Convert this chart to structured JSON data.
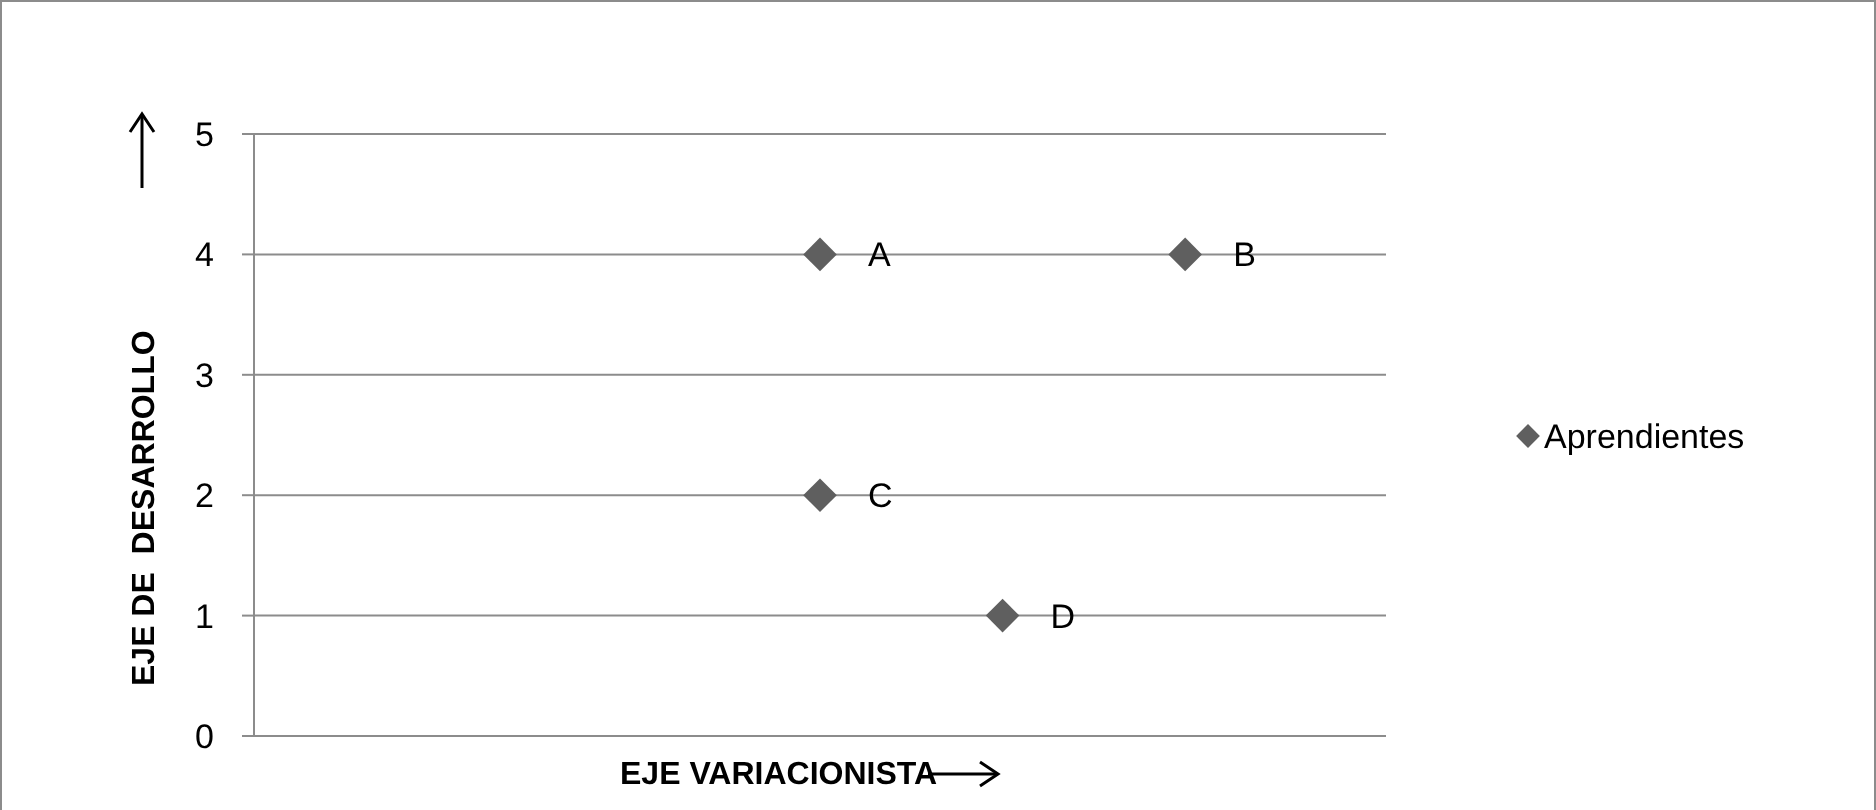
{
  "chart_data": {
    "type": "scatter",
    "xlabel": "EJE VARIACIONISTA",
    "ylabel": "EJE DE  DESARROLLO",
    "categories": [
      null,
      null,
      null,
      null,
      null,
      null,
      null
    ],
    "series": [
      {
        "name": "Aprendientes",
        "color": "#5f5f5f",
        "values": [
          null,
          null,
          null,
          4,
          1,
          4,
          null
        ],
        "value_labels": [
          null,
          null,
          null,
          "A",
          "D",
          "B",
          null
        ]
      },
      {
        "color": "#5f5f5f",
        "values": [
          null,
          null,
          null,
          2,
          null,
          null,
          null
        ],
        "value_labels": [
          null,
          null,
          null,
          "C",
          null,
          null,
          null
        ]
      }
    ],
    "ylim": [
      0,
      5
    ],
    "yticks": [
      0,
      1,
      2,
      3,
      4,
      5
    ],
    "grid": "y",
    "legend": "right",
    "marker": "diamond"
  }
}
